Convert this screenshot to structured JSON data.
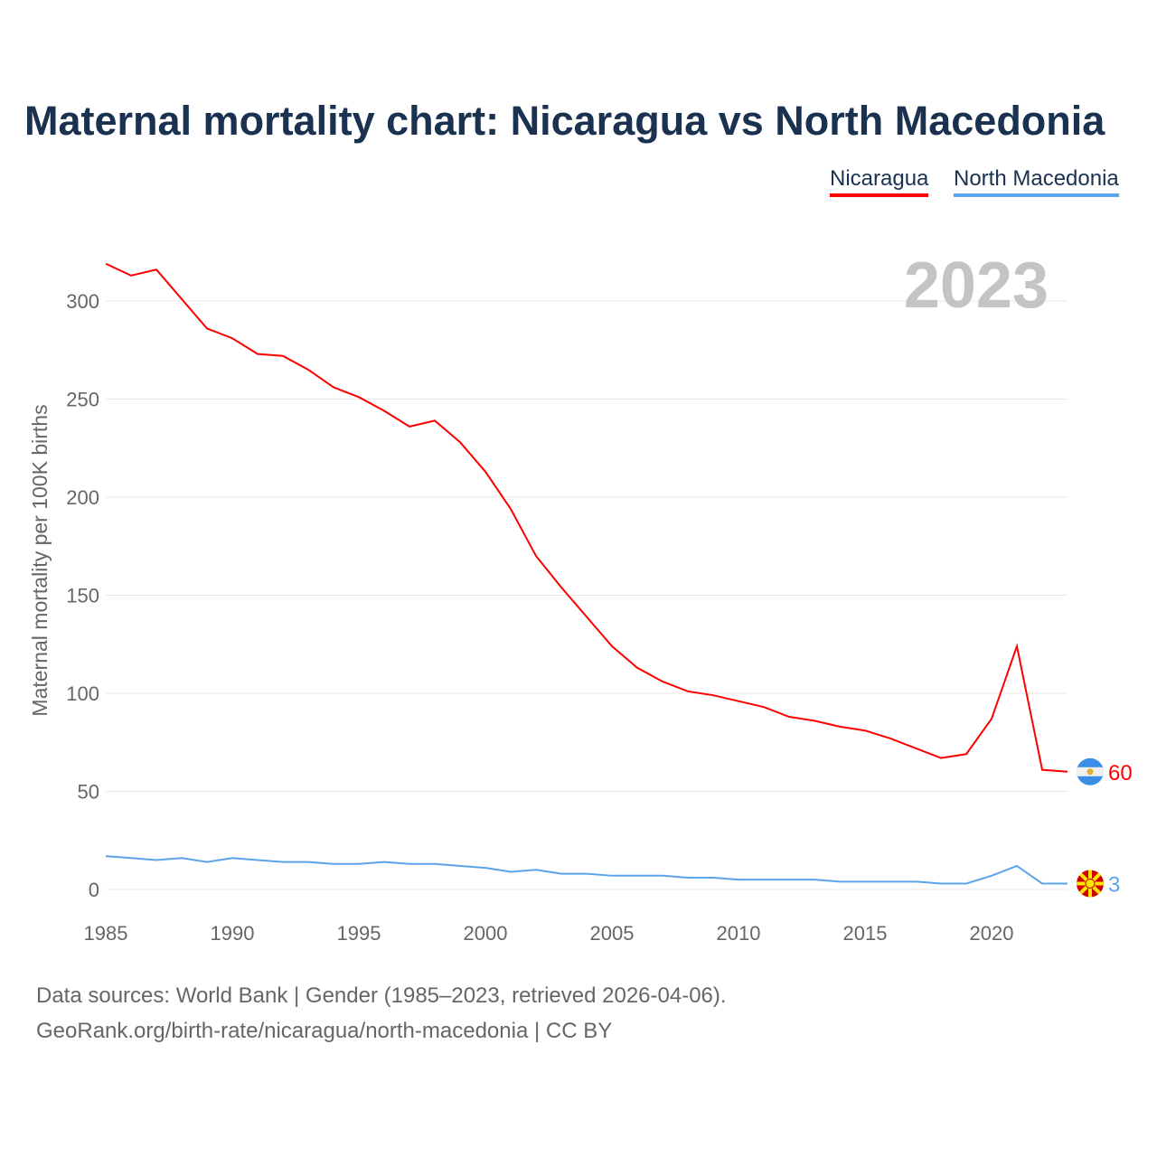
{
  "chart_data": {
    "type": "line",
    "title": "Maternal mortality chart: Nicaragua vs North Macedonia",
    "xlabel": "",
    "ylabel": "Maternal mortality per 100K births",
    "xlim": [
      1985,
      2023
    ],
    "ylim": [
      0,
      320
    ],
    "x_ticks": [
      1985,
      1990,
      1995,
      2000,
      2005,
      2010,
      2015,
      2020
    ],
    "y_ticks": [
      0,
      50,
      100,
      150,
      200,
      250,
      300
    ],
    "grid": true,
    "legend_position": "top-right",
    "year_label": "2023",
    "x": [
      1985,
      1986,
      1987,
      1988,
      1989,
      1990,
      1991,
      1992,
      1993,
      1994,
      1995,
      1996,
      1997,
      1998,
      1999,
      2000,
      2001,
      2002,
      2003,
      2004,
      2005,
      2006,
      2007,
      2008,
      2009,
      2010,
      2011,
      2012,
      2013,
      2014,
      2015,
      2016,
      2017,
      2018,
      2019,
      2020,
      2021,
      2022,
      2023
    ],
    "series": [
      {
        "name": "Nicaragua",
        "color": "#ff0000",
        "end_label": "60",
        "flag": "nicaragua-flag",
        "values": [
          319,
          313,
          316,
          301,
          286,
          281,
          273,
          272,
          265,
          256,
          251,
          244,
          236,
          239,
          228,
          213,
          194,
          170,
          154,
          139,
          124,
          113,
          106,
          101,
          99,
          96,
          93,
          88,
          86,
          83,
          81,
          77,
          72,
          67,
          69,
          87,
          124,
          61,
          60
        ]
      },
      {
        "name": "North Macedonia",
        "color": "#5ba4e8",
        "end_label": "3",
        "flag": "north-macedonia-flag",
        "values": [
          17,
          16,
          15,
          16,
          14,
          16,
          15,
          14,
          14,
          13,
          13,
          14,
          13,
          13,
          12,
          11,
          9,
          10,
          8,
          8,
          7,
          7,
          7,
          6,
          6,
          5,
          5,
          5,
          5,
          4,
          4,
          4,
          4,
          3,
          3,
          7,
          12,
          3,
          3
        ]
      }
    ]
  },
  "footer": {
    "source": "Data sources: World Bank | Gender (1985–2023, retrieved 2026-04-06).",
    "credit": "GeoRank.org/birth-rate/nicaragua/north-macedonia | CC BY"
  }
}
